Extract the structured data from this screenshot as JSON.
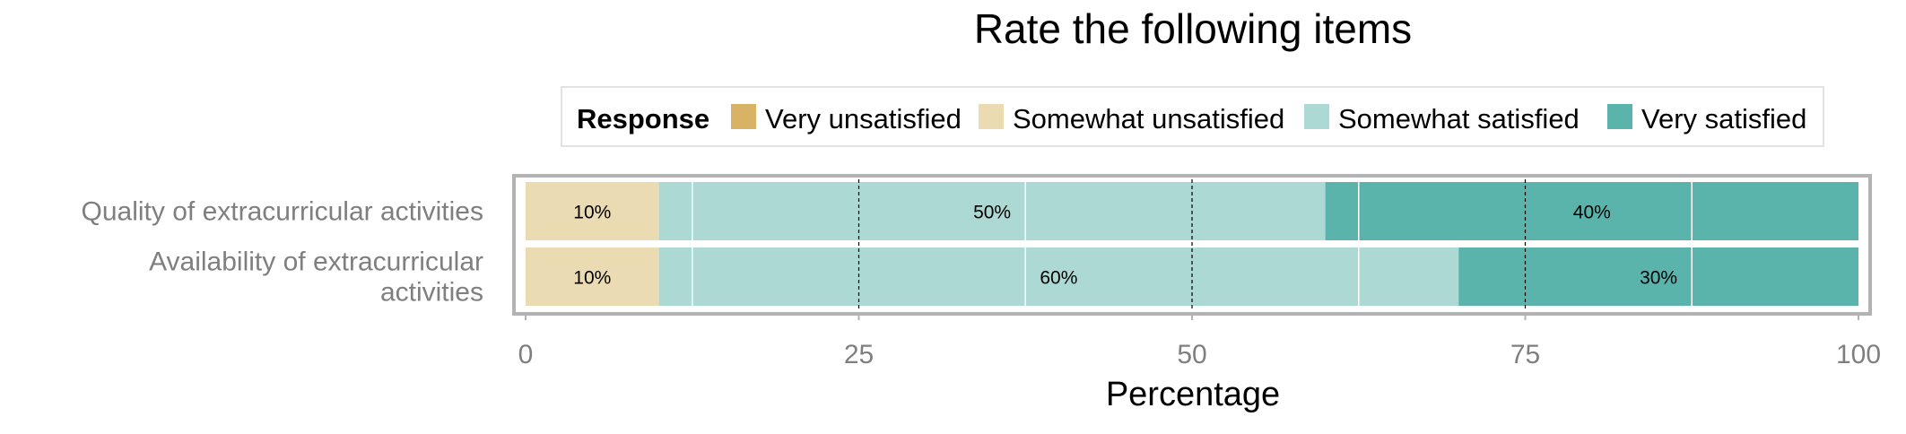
{
  "chart_data": {
    "type": "bar",
    "orientation": "horizontal",
    "stacked": true,
    "title": "Rate the following items",
    "xlabel": "Percentage",
    "ylabel": "",
    "xlim": [
      0,
      100
    ],
    "x_ticks": [
      0,
      25,
      50,
      75,
      100
    ],
    "grid": true,
    "legend": {
      "title": "Response",
      "placement": "top"
    },
    "categories": [
      "Quality of extracurricular activities",
      "Availability of extracurricular activities"
    ],
    "category_label_lines": [
      [
        "Quality of extracurricular activities"
      ],
      [
        "Availability of extracurricular",
        "activities"
      ]
    ],
    "series": [
      {
        "name": "Very unsatisfied",
        "color": "#d8b365",
        "values": [
          0,
          0
        ],
        "labels": [
          "",
          ""
        ]
      },
      {
        "name": "Somewhat unsatisfied",
        "color": "#ebdbb2",
        "values": [
          10,
          10
        ],
        "labels": [
          "10%",
          "10%"
        ]
      },
      {
        "name": "Somewhat satisfied",
        "color": "#acd9d4",
        "values": [
          50,
          60
        ],
        "labels": [
          "50%",
          "60%"
        ]
      },
      {
        "name": "Very satisfied",
        "color": "#5ab4ac",
        "values": [
          40,
          30
        ],
        "labels": [
          "40%",
          "30%"
        ]
      }
    ]
  }
}
